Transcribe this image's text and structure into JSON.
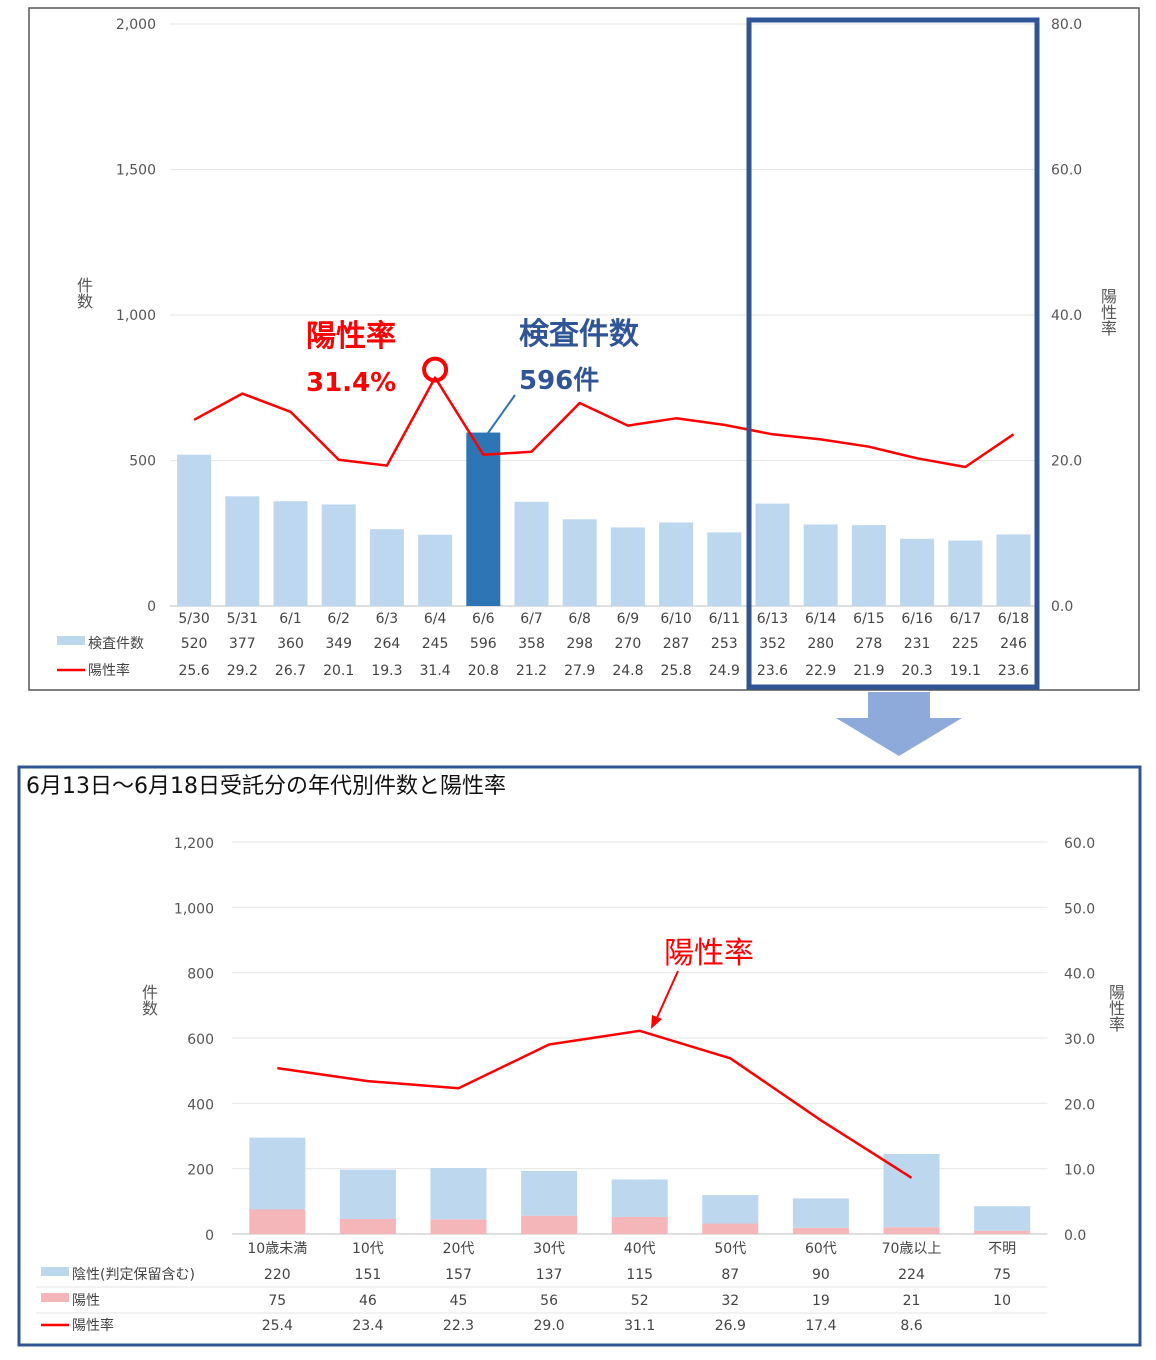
{
  "chart_data": [
    {
      "type": "bar",
      "categories": [
        "5/30",
        "5/31",
        "6/1",
        "6/2",
        "6/3",
        "6/4",
        "6/6",
        "6/7",
        "6/8",
        "6/9",
        "6/10",
        "6/11",
        "6/13",
        "6/14",
        "6/15",
        "6/16",
        "6/17",
        "6/18"
      ],
      "series": [
        {
          "name": "検査件数",
          "kind": "bar",
          "values": [
            520,
            377,
            360,
            349,
            264,
            245,
            596,
            358,
            298,
            270,
            287,
            253,
            352,
            280,
            278,
            231,
            225,
            246
          ]
        },
        {
          "name": "陽性率",
          "kind": "line",
          "axis": "right",
          "values": [
            25.6,
            29.2,
            26.7,
            20.1,
            19.3,
            31.4,
            20.8,
            21.2,
            27.9,
            24.8,
            25.8,
            24.9,
            23.6,
            22.9,
            21.9,
            20.3,
            19.1,
            23.6
          ]
        }
      ],
      "ylabel": "件数",
      "y2label": "陽性率",
      "ylim": [
        0,
        2000
      ],
      "y2lim": [
        0,
        80
      ],
      "yticks": [
        "0",
        "500",
        "1,000",
        "1,500",
        "2,000"
      ],
      "y2ticks": [
        "0.0",
        "20.0",
        "40.0",
        "60.0",
        "80.0"
      ],
      "highlight_category": "6/6",
      "highlight_range": [
        "6/13",
        "6/18"
      ],
      "annotations": {
        "rate_label": "陽性率",
        "rate_value": "31.4%",
        "count_label": "検査件数",
        "count_value": "596件"
      },
      "grid": true,
      "legend": "data-table",
      "colors": {
        "bar": "#bdd7ee",
        "highlight": "#2e75b6",
        "line": "#ff0000",
        "frame": "#2f5597"
      }
    },
    {
      "type": "bar",
      "title": "6月13日～6月18日受託分の年代別件数と陽性率",
      "categories": [
        "10歳未満",
        "10代",
        "20代",
        "30代",
        "40代",
        "50代",
        "60代",
        "70歳以上",
        "不明"
      ],
      "series": [
        {
          "name": "陰性(判定保留含む)",
          "kind": "stacked-bar",
          "values": [
            220,
            151,
            157,
            137,
            115,
            87,
            90,
            224,
            75
          ]
        },
        {
          "name": "陽性",
          "kind": "stacked-bar",
          "values": [
            75,
            46,
            45,
            56,
            52,
            32,
            19,
            21,
            10
          ]
        },
        {
          "name": "陽性率",
          "kind": "line",
          "axis": "right",
          "values": [
            25.4,
            23.4,
            22.3,
            29.0,
            31.1,
            26.9,
            17.4,
            8.6,
            null
          ]
        }
      ],
      "table": {
        "陰性(判定保留含む)": [
          "220",
          "151",
          "157",
          "137",
          "115",
          "87",
          "90",
          "224",
          "75"
        ],
        "陽性": [
          "75",
          "46",
          "45",
          "56",
          "52",
          "32",
          "19",
          "21",
          "10"
        ],
        "陽性率": [
          "25.4",
          "23.4",
          "22.3",
          "29.0",
          "31.1",
          "26.9",
          "17.4",
          "8.6",
          ""
        ]
      },
      "ylabel": "件数",
      "y2label": "陽性率",
      "ylim": [
        0,
        1200
      ],
      "y2lim": [
        0,
        60
      ],
      "yticks": [
        "0",
        "200",
        "400",
        "600",
        "800",
        "1,000",
        "1,200"
      ],
      "y2ticks": [
        "0.0",
        "10.0",
        "20.0",
        "30.0",
        "40.0",
        "50.0",
        "60.0"
      ],
      "annotation": "陽性率",
      "grid": true,
      "legend": "data-table",
      "colors": {
        "negative": "#bdd7ee",
        "positive": "#f4b6b8",
        "line": "#ff0000",
        "frame": "#2f5597",
        "arrow": "#8eaadb"
      }
    }
  ]
}
